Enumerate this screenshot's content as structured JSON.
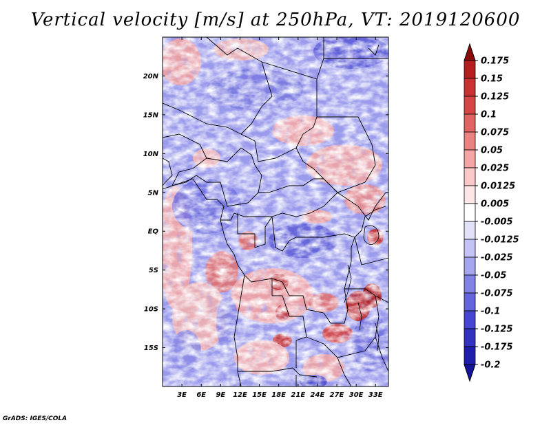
{
  "title": "Vertical velocity [m/s] at 250hPa, VT: 2019120600",
  "credit": "GrADS: IGES/COLA",
  "map": {
    "lon_range": [
      0,
      35
    ],
    "lat_range": [
      -20,
      25
    ],
    "lon_ticks": [
      {
        "value": 3,
        "label": "3E"
      },
      {
        "value": 6,
        "label": "6E"
      },
      {
        "value": 9,
        "label": "9E"
      },
      {
        "value": 12,
        "label": "12E"
      },
      {
        "value": 15,
        "label": "15E"
      },
      {
        "value": 18,
        "label": "18E"
      },
      {
        "value": 21,
        "label": "21E"
      },
      {
        "value": 24,
        "label": "24E"
      },
      {
        "value": 27,
        "label": "27E"
      },
      {
        "value": 30,
        "label": "30E"
      },
      {
        "value": 33,
        "label": "33E"
      }
    ],
    "lat_ticks": [
      {
        "value": 20,
        "label": "20N"
      },
      {
        "value": 15,
        "label": "15N"
      },
      {
        "value": 10,
        "label": "10N"
      },
      {
        "value": 5,
        "label": "5N"
      },
      {
        "value": 0,
        "label": "EQ"
      },
      {
        "value": -5,
        "label": "5S"
      },
      {
        "value": -10,
        "label": "10S"
      },
      {
        "value": -15,
        "label": "15S"
      }
    ]
  },
  "colorbar": {
    "levels": [
      {
        "label": "0.175",
        "color": "#a01414"
      },
      {
        "label": "0.15",
        "color": "#b41e1e"
      },
      {
        "label": "0.125",
        "color": "#c83232"
      },
      {
        "label": "0.1",
        "color": "#d74646"
      },
      {
        "label": "0.075",
        "color": "#e16464"
      },
      {
        "label": "0.05",
        "color": "#eb8282"
      },
      {
        "label": "0.025",
        "color": "#f5a5a5"
      },
      {
        "label": "0.0125",
        "color": "#fac8c8"
      },
      {
        "label": "0.005",
        "color": "#fde6e6"
      },
      {
        "label": "-0.005",
        "color": "#ffffff"
      },
      {
        "label": "-0.0125",
        "color": "#e1e1fa"
      },
      {
        "label": "-0.025",
        "color": "#c3c3f5"
      },
      {
        "label": "-0.05",
        "color": "#a5a5f0"
      },
      {
        "label": "-0.075",
        "color": "#8282e6"
      },
      {
        "label": "-0.1",
        "color": "#6464dc"
      },
      {
        "label": "-0.125",
        "color": "#4646d2"
      },
      {
        "label": "-0.175",
        "color": "#3232be"
      },
      {
        "label": "-0.2",
        "color": "#1e1eaa"
      }
    ],
    "top_color": "#8c0a0a",
    "bottom_color": "#14149b"
  }
}
